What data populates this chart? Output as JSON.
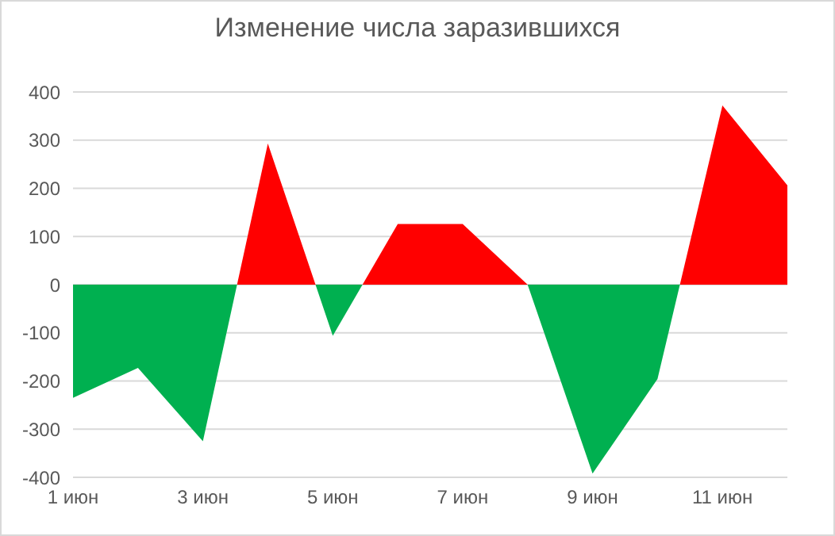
{
  "chart_data": {
    "type": "area",
    "title": "Изменение числа заразившихся",
    "categories": [
      "1 июн",
      null,
      "3 июн",
      null,
      "5 июн",
      null,
      "7 июн",
      null,
      "9 июн",
      null,
      "11 июн",
      null
    ],
    "values": [
      -235,
      -173,
      -325,
      293,
      -106,
      126,
      126,
      0,
      -392,
      -196,
      372,
      206
    ],
    "colors": [
      "#00b050",
      "#00b050",
      "#00b050",
      "#ff0000",
      "#00b050",
      "#ff0000",
      "#ff0000",
      "#ff0000",
      "#00b050",
      "#00b050",
      "#ff0000",
      "#ff0000"
    ],
    "ylim": [
      -400,
      400
    ],
    "yticks": [
      -400,
      -300,
      -200,
      -100,
      0,
      100,
      200,
      300,
      400
    ],
    "grid": "y"
  }
}
